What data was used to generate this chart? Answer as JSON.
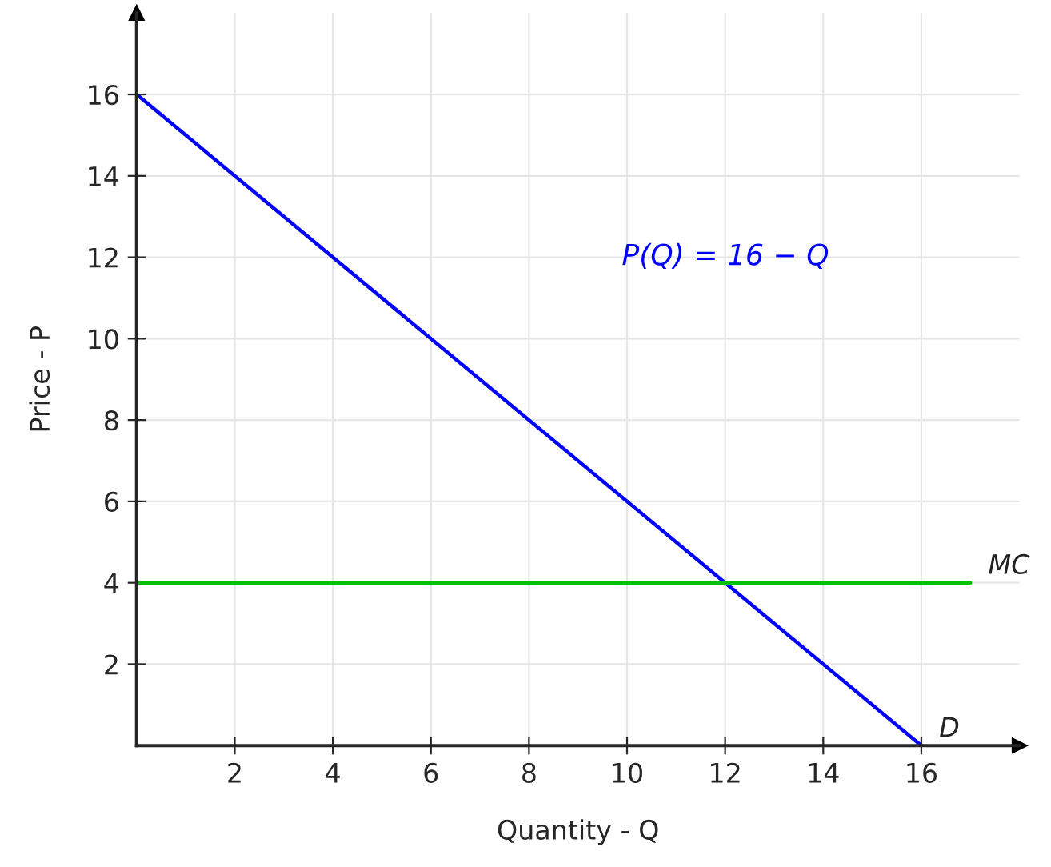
{
  "chart_data": {
    "type": "line",
    "xlabel": "Quantity - Q",
    "ylabel": "Price - P",
    "series": [
      {
        "name": "D",
        "color": "#0000ff",
        "x": [
          0,
          16
        ],
        "values": [
          16,
          0
        ]
      },
      {
        "name": "MC",
        "color": "#00c000",
        "x": [
          0,
          17
        ],
        "values": [
          4,
          4
        ]
      }
    ],
    "annotations": [
      "P(Q) = 16 − Q"
    ],
    "xlim": [
      0,
      18
    ],
    "ylim": [
      0,
      18
    ],
    "xticks": [
      2,
      4,
      6,
      8,
      10,
      12,
      14,
      16
    ],
    "yticks": [
      2,
      4,
      6,
      8,
      10,
      12,
      14,
      16
    ],
    "grid": true,
    "marker": "none",
    "line_style": "solid"
  }
}
